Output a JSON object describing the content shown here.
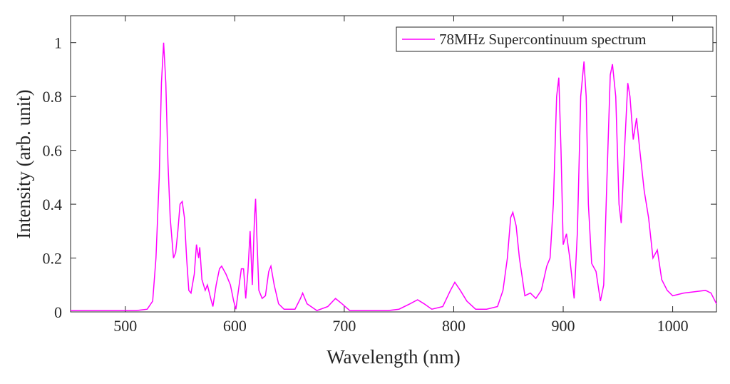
{
  "chart_data": {
    "type": "line",
    "xlabel": "Wavelength (nm)",
    "ylabel": "Intensity (arb. unit)",
    "xlim": [
      450,
      1040
    ],
    "ylim": [
      0,
      1.1
    ],
    "xticks": [
      500,
      600,
      700,
      800,
      900,
      1000
    ],
    "yticks": [
      0,
      0.2,
      0.4,
      0.6,
      0.8,
      1
    ],
    "legend": "upper right",
    "series": [
      {
        "name": "78MHz Supercontinuum spectrum",
        "color": "#ff00ff",
        "x": [
          450,
          480,
          510,
          520,
          525,
          528,
          531,
          533,
          535,
          537,
          539,
          541,
          544,
          546,
          548,
          550,
          552,
          554,
          556,
          558,
          560,
          563,
          565,
          567,
          568,
          570,
          573,
          575,
          578,
          580,
          583,
          586,
          588,
          592,
          596,
          599,
          601,
          604,
          606,
          608,
          610,
          612,
          614,
          616,
          618,
          619,
          620,
          622,
          625,
          628,
          631,
          633,
          636,
          640,
          645,
          655,
          660,
          662,
          666,
          675,
          685,
          692,
          698,
          705,
          740,
          750,
          760,
          767,
          773,
          780,
          790,
          797,
          801,
          806,
          812,
          820,
          830,
          840,
          845,
          849,
          852,
          854,
          857,
          860,
          865,
          870,
          875,
          880,
          885,
          888,
          891,
          894,
          896,
          898,
          900,
          903,
          906,
          910,
          913,
          916,
          919,
          921,
          923,
          926,
          930,
          934,
          937,
          940,
          943,
          945,
          948,
          951,
          953,
          956,
          959,
          961,
          964,
          967,
          970,
          974,
          978,
          982,
          986,
          990,
          995,
          1000,
          1010,
          1020,
          1030,
          1035,
          1040
        ],
        "values": [
          0.005,
          0.005,
          0.005,
          0.01,
          0.04,
          0.2,
          0.5,
          0.85,
          1.0,
          0.85,
          0.55,
          0.35,
          0.2,
          0.22,
          0.3,
          0.4,
          0.41,
          0.35,
          0.2,
          0.08,
          0.07,
          0.14,
          0.25,
          0.2,
          0.24,
          0.12,
          0.08,
          0.1,
          0.05,
          0.02,
          0.1,
          0.16,
          0.17,
          0.14,
          0.1,
          0.04,
          0.01,
          0.1,
          0.16,
          0.16,
          0.05,
          0.15,
          0.3,
          0.1,
          0.35,
          0.42,
          0.3,
          0.08,
          0.05,
          0.06,
          0.15,
          0.17,
          0.1,
          0.03,
          0.01,
          0.01,
          0.05,
          0.07,
          0.03,
          0.005,
          0.02,
          0.05,
          0.03,
          0.005,
          0.005,
          0.01,
          0.03,
          0.045,
          0.03,
          0.01,
          0.02,
          0.08,
          0.11,
          0.08,
          0.04,
          0.01,
          0.01,
          0.02,
          0.08,
          0.2,
          0.35,
          0.37,
          0.32,
          0.2,
          0.06,
          0.07,
          0.05,
          0.08,
          0.17,
          0.2,
          0.4,
          0.8,
          0.87,
          0.6,
          0.25,
          0.29,
          0.2,
          0.05,
          0.3,
          0.8,
          0.93,
          0.8,
          0.4,
          0.18,
          0.15,
          0.04,
          0.1,
          0.5,
          0.88,
          0.92,
          0.8,
          0.4,
          0.33,
          0.6,
          0.85,
          0.8,
          0.64,
          0.72,
          0.6,
          0.45,
          0.35,
          0.2,
          0.23,
          0.12,
          0.08,
          0.06,
          0.07,
          0.075,
          0.08,
          0.07,
          0.03
        ]
      }
    ]
  }
}
